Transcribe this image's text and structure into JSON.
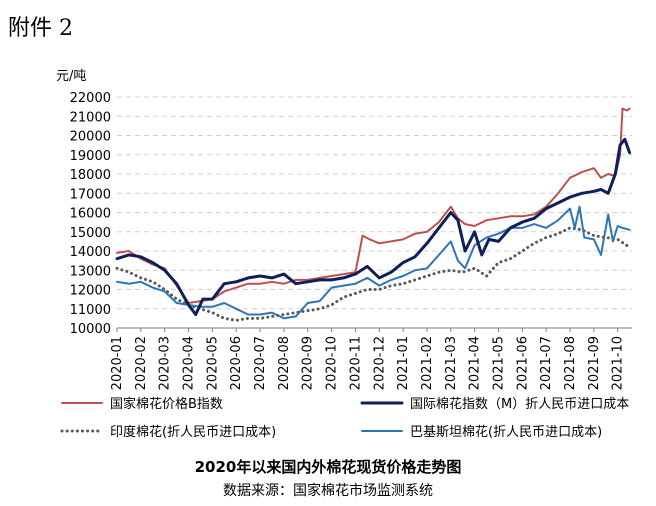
{
  "header": "附件 2",
  "chart_data": {
    "type": "line",
    "title": "2020年以来国内外棉花现货价格走势图",
    "source": "数据来源：国家棉花市场监测系统",
    "ylabel": "元/吨",
    "ylim": [
      10000,
      22000
    ],
    "yticks": [
      10000,
      11000,
      12000,
      13000,
      14000,
      15000,
      16000,
      17000,
      18000,
      19000,
      20000,
      21000,
      22000
    ],
    "xlim": [
      0,
      21.6
    ],
    "categories": [
      "2020-01",
      "2020-02",
      "2020-03",
      "2020-04",
      "2020-05",
      "2020-06",
      "2020-07",
      "2020-08",
      "2020-09",
      "2020-10",
      "2020-11",
      "2020-12",
      "2021-01",
      "2021-02",
      "2021-03",
      "2021-04",
      "2021-05",
      "2021-06",
      "2021-07",
      "2021-08",
      "2021-09",
      "2021-10"
    ],
    "grid": "horizontal-dashed",
    "legend_position": "bottom",
    "series": [
      {
        "name": "国家棉花价格B指数",
        "color": "#c0504d",
        "style": "solid",
        "x": [
          0,
          0.5,
          1,
          1.5,
          2,
          2.5,
          3,
          3.5,
          4,
          4.5,
          5,
          5.5,
          6,
          6.5,
          7,
          7.5,
          8,
          8.5,
          9,
          9.5,
          10,
          10.3,
          10.6,
          11,
          11.5,
          12,
          12.5,
          13,
          13.5,
          14,
          14.3,
          14.6,
          15,
          15.5,
          16,
          16.5,
          17,
          17.5,
          18,
          18.5,
          19,
          19.5,
          20,
          20.3,
          20.6,
          20.9,
          21.1,
          21.2,
          21.4,
          21.5
        ],
        "y": [
          13900,
          14000,
          13600,
          13300,
          13100,
          12200,
          11300,
          11400,
          11500,
          11900,
          12100,
          12300,
          12300,
          12400,
          12300,
          12500,
          12500,
          12600,
          12700,
          12800,
          12900,
          14800,
          14600,
          14400,
          14500,
          14600,
          14900,
          15000,
          15500,
          16300,
          15700,
          15400,
          15300,
          15600,
          15700,
          15800,
          15800,
          15900,
          16300,
          17000,
          17800,
          18100,
          18300,
          17800,
          18000,
          17900,
          19000,
          21400,
          21300,
          21400
        ]
      },
      {
        "name": "国际棉花指数（M）折人民币进口成本",
        "color": "#0f1f5c",
        "style": "solid",
        "x": [
          0,
          0.5,
          1,
          1.5,
          2,
          2.5,
          3,
          3.3,
          3.6,
          4,
          4.5,
          5,
          5.5,
          6,
          6.5,
          7,
          7.5,
          8,
          8.5,
          9,
          9.5,
          10,
          10.5,
          11,
          11.5,
          12,
          12.5,
          13,
          13.5,
          14,
          14.3,
          14.6,
          15,
          15.3,
          15.6,
          16,
          16.5,
          17,
          17.5,
          18,
          18.5,
          19,
          19.5,
          20,
          20.3,
          20.6,
          20.9,
          21.1,
          21.3,
          21.5
        ],
        "y": [
          13600,
          13800,
          13700,
          13400,
          13000,
          12300,
          11200,
          10700,
          11500,
          11500,
          12300,
          12400,
          12600,
          12700,
          12600,
          12800,
          12300,
          12400,
          12500,
          12500,
          12600,
          12800,
          13200,
          12600,
          12900,
          13400,
          13700,
          14400,
          15200,
          16000,
          15600,
          14000,
          15000,
          13800,
          14600,
          14500,
          15200,
          15500,
          15700,
          16200,
          16500,
          16800,
          17000,
          17100,
          17200,
          17000,
          18000,
          19500,
          19800,
          19100
        ]
      },
      {
        "name": "印度棉花(折人民币进口成本)",
        "color": "#595959",
        "style": "dotted",
        "x": [
          0,
          0.5,
          1,
          1.5,
          2,
          2.5,
          3,
          3.5,
          4,
          4.5,
          5,
          5.5,
          6,
          6.5,
          7,
          7.5,
          8,
          8.5,
          9,
          9.5,
          10,
          10.5,
          11,
          11.5,
          12,
          12.5,
          13,
          13.5,
          14,
          14.5,
          15,
          15.5,
          16,
          16.5,
          17,
          17.5,
          18,
          18.5,
          19,
          19.5,
          20,
          20.5,
          21,
          21.5
        ],
        "y": [
          13100,
          12900,
          12600,
          12400,
          12000,
          11500,
          11200,
          11000,
          10800,
          10500,
          10400,
          10500,
          10500,
          10600,
          10700,
          10800,
          10900,
          11000,
          11200,
          11600,
          11800,
          12000,
          12000,
          12200,
          12300,
          12500,
          12700,
          12900,
          13000,
          12900,
          13100,
          12700,
          13400,
          13600,
          14000,
          14400,
          14700,
          14900,
          15200,
          15100,
          14800,
          14700,
          14600,
          14200
        ]
      },
      {
        "name": "巴基斯坦棉花(折人民币进口成本)",
        "color": "#2e75b6",
        "style": "solid",
        "x": [
          0,
          0.5,
          1,
          1.5,
          2,
          2.5,
          3,
          3.5,
          4,
          4.5,
          5,
          5.5,
          6,
          6.5,
          7,
          7.5,
          8,
          8.5,
          9,
          9.5,
          10,
          10.5,
          11,
          11.5,
          12,
          12.5,
          13,
          13.5,
          14,
          14.3,
          14.6,
          15,
          15.5,
          16,
          16.5,
          17,
          17.5,
          18,
          18.5,
          19,
          19.2,
          19.4,
          19.6,
          20,
          20.3,
          20.6,
          20.8,
          21,
          21.2,
          21.5
        ],
        "y": [
          12400,
          12300,
          12400,
          12100,
          11900,
          11300,
          11200,
          11100,
          11100,
          11300,
          11000,
          10700,
          10700,
          10800,
          10500,
          10600,
          11300,
          11400,
          12100,
          12200,
          12300,
          12600,
          12200,
          12500,
          12700,
          13000,
          13100,
          13800,
          14500,
          13500,
          13100,
          14300,
          14700,
          14900,
          15200,
          15200,
          15400,
          15200,
          15600,
          16200,
          15200,
          16300,
          14700,
          14600,
          13800,
          15900,
          14500,
          15300,
          15200,
          15100
        ]
      }
    ]
  }
}
